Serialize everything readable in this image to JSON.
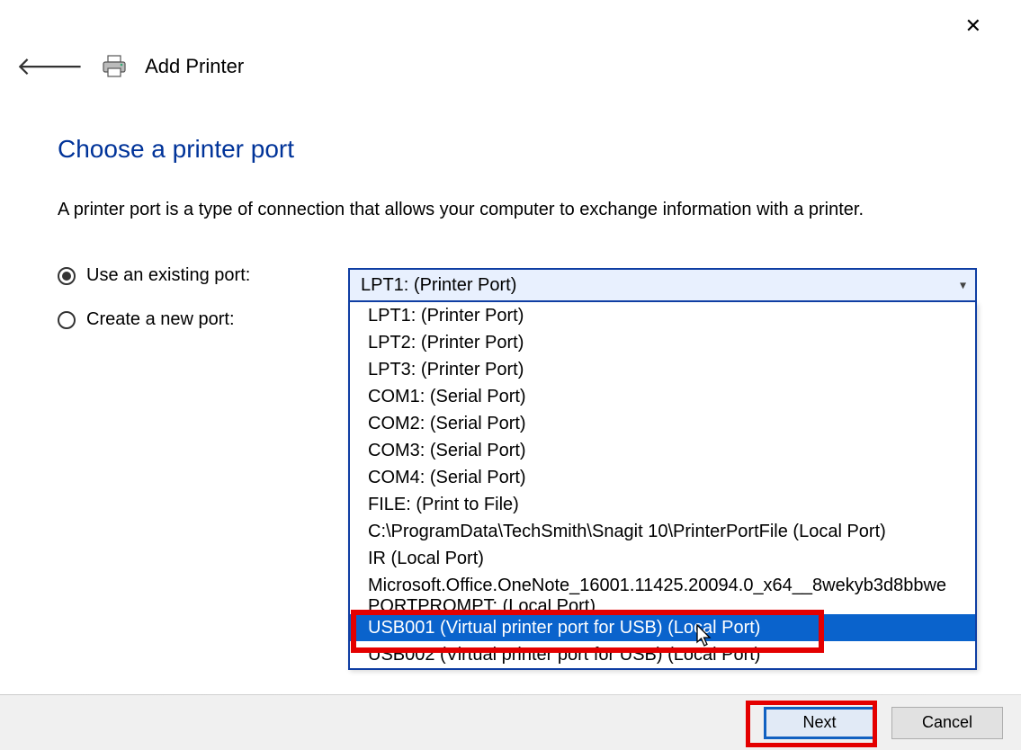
{
  "window": {
    "title": "Add Printer"
  },
  "page": {
    "heading": "Choose a printer port",
    "description": "A printer port is a type of connection that allows your computer to exchange information with a printer."
  },
  "options": {
    "existing_label": "Use an existing port:",
    "existing_checked": true,
    "create_label": "Create a new port:",
    "create_checked": false
  },
  "combo": {
    "selected": "LPT1: (Printer Port)",
    "items": [
      "LPT1: (Printer Port)",
      "LPT2: (Printer Port)",
      "LPT3: (Printer Port)",
      "COM1: (Serial Port)",
      "COM2: (Serial Port)",
      "COM3: (Serial Port)",
      "COM4: (Serial Port)",
      "FILE: (Print to File)",
      "C:\\ProgramData\\TechSmith\\Snagit 10\\PrinterPortFile (Local Port)",
      "IR (Local Port)",
      "Microsoft.Office.OneNote_16001.11425.20094.0_x64__8wekyb3d8bbwe",
      "PORTPROMPT: (Local Port)",
      "USB001 (Virtual printer port for USB) (Local Port)",
      "USB002 (Virtual printer port for USB) (Local Port)"
    ],
    "highlighted_index": 12
  },
  "footer": {
    "next": "Next",
    "cancel": "Cancel"
  },
  "colors": {
    "heading": "#003399",
    "combo_border": "#0f3ea3",
    "combo_bg": "#e8f0fe",
    "highlight_bg": "#0a63cc",
    "highlight_fg": "#ffffff",
    "annotation": "#e40000",
    "primary_btn_border": "#1161c1"
  }
}
